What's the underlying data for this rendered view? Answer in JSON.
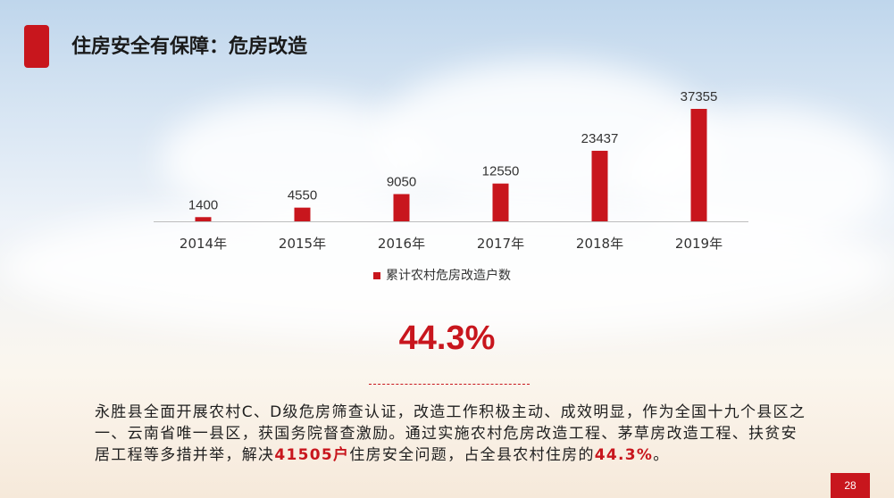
{
  "page": {
    "title": "住房安全有保障：危房改造",
    "highlight_value": "44.3%",
    "paragraph": {
      "part1": "永胜县全面开展农村C、D级危房筛查认证，改造工作积极主动、成效明显，作为全国十九个县区之一、云南省唯一县区，获国务院督查激励。通过实施农村危房改造工程、茅草房改造工程、扶贫安居工程等多措并举，解决",
      "hl1": "41505户",
      "part2": "住房安全问题，占全县农村住房的",
      "hl2": "44.3%",
      "part3": "。"
    },
    "page_number": "28"
  },
  "colors": {
    "accent": "#c8161d"
  },
  "chart_data": {
    "type": "bar",
    "categories": [
      "2014年",
      "2015年",
      "2016年",
      "2017年",
      "2018年",
      "2019年"
    ],
    "series": [
      {
        "name": "累计农村危房改造户数",
        "values": [
          1400,
          4550,
          9050,
          12550,
          23437,
          37355
        ],
        "color": "#c8161d"
      }
    ],
    "ylim": [
      0,
      37355
    ],
    "grid": false,
    "legend": "bottom-center",
    "data_labels": true
  }
}
